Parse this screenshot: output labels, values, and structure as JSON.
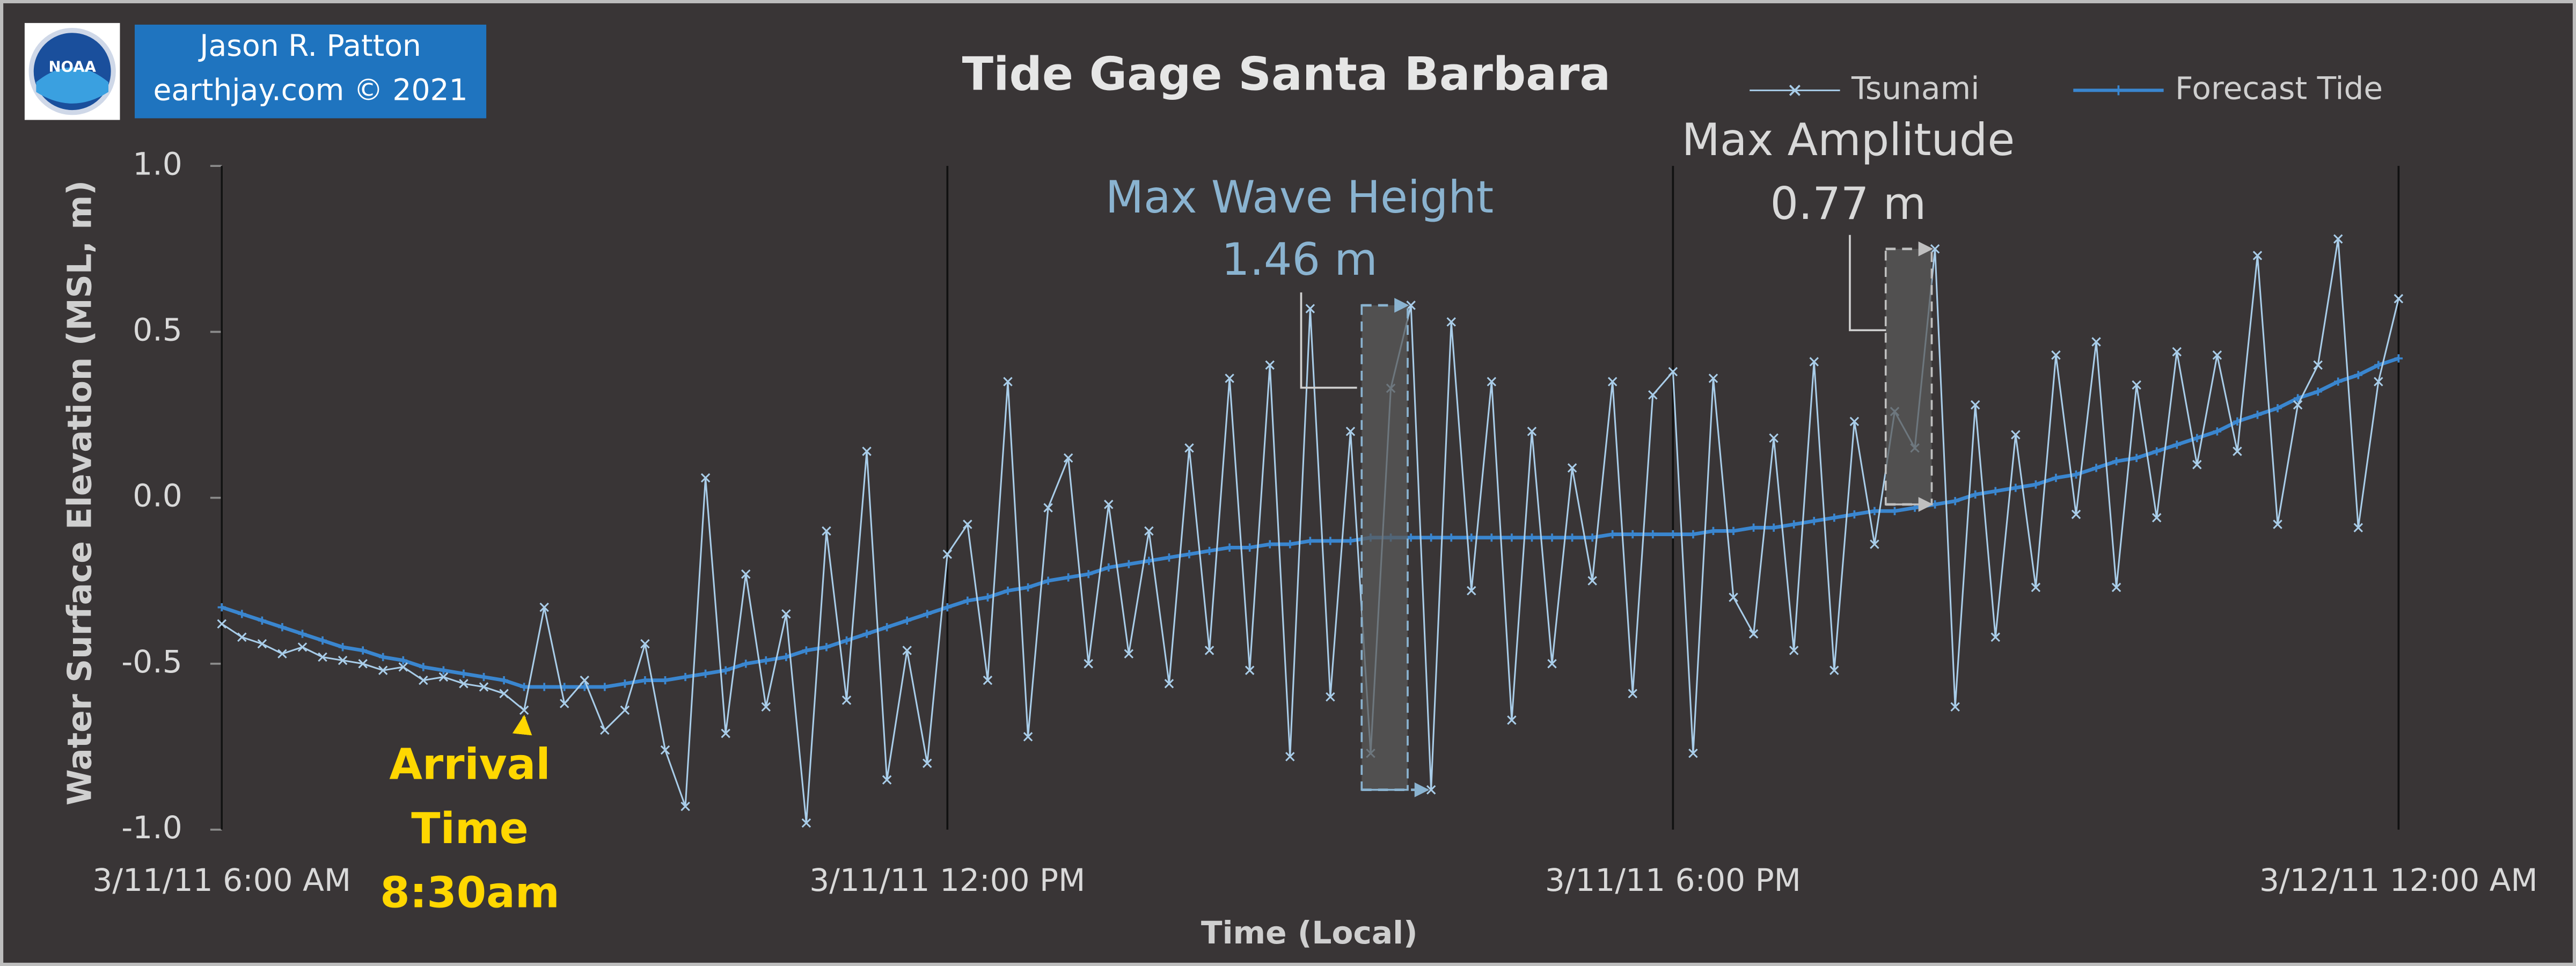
{
  "logo": "NOAA",
  "credit": [
    "Jason R. Patton",
    "earthjay.com © 2021"
  ],
  "chart_data": {
    "type": "line",
    "title": "Tide Gage Santa Barbara",
    "x_label": "Time (Local)",
    "y_label": "Water Surface Elevation (MSL, m)",
    "grid": "x",
    "x": [
      "3/11/11 6:00 AM",
      "3/11/11 6:10 AM",
      "3/11/11 6:20 AM",
      "3/11/11 6:30 AM",
      "3/11/11 6:40 AM",
      "3/11/11 6:50 AM",
      "3/11/11 7:00 AM",
      "3/11/11 7:10 AM",
      "3/11/11 7:20 AM",
      "3/11/11 7:30 AM",
      "3/11/11 7:40 AM",
      "3/11/11 7:50 AM",
      "3/11/11 8:00 AM",
      "3/11/11 8:10 AM",
      "3/11/11 8:20 AM",
      "3/11/11 8:30 AM",
      "3/11/11 8:40 AM",
      "3/11/11 8:50 AM",
      "3/11/11 9:00 AM",
      "3/11/11 9:10 AM",
      "3/11/11 9:20 AM",
      "3/11/11 9:30 AM",
      "3/11/11 9:40 AM",
      "3/11/11 9:50 AM",
      "3/11/11 10:00 AM",
      "3/11/11 10:10 AM",
      "3/11/11 10:20 AM",
      "3/11/11 10:30 AM",
      "3/11/11 10:40 AM",
      "3/11/11 10:50 AM",
      "3/11/11 11:00 AM",
      "3/11/11 11:10 AM",
      "3/11/11 11:20 AM",
      "3/11/11 11:30 AM",
      "3/11/11 11:40 AM",
      "3/11/11 11:50 AM",
      "3/11/11 12:00 PM",
      "3/11/11 12:10 PM",
      "3/11/11 12:20 PM",
      "3/11/11 12:30 PM",
      "3/11/11 12:40 PM",
      "3/11/11 12:50 PM",
      "3/11/11 1:00 PM",
      "3/11/11 1:10 PM",
      "3/11/11 1:20 PM",
      "3/11/11 1:30 PM",
      "3/11/11 1:40 PM",
      "3/11/11 1:50 PM",
      "3/11/11 2:00 PM",
      "3/11/11 2:10 PM",
      "3/11/11 2:20 PM",
      "3/11/11 2:30 PM",
      "3/11/11 2:40 PM",
      "3/11/11 2:50 PM",
      "3/11/11 3:00 PM",
      "3/11/11 3:10 PM",
      "3/11/11 3:20 PM",
      "3/11/11 3:30 PM",
      "3/11/11 3:40 PM",
      "3/11/11 3:50 PM",
      "3/11/11 4:00 PM",
      "3/11/11 4:10 PM",
      "3/11/11 4:20 PM",
      "3/11/11 4:30 PM",
      "3/11/11 4:40 PM",
      "3/11/11 4:50 PM",
      "3/11/11 5:00 PM",
      "3/11/11 5:10 PM",
      "3/11/11 5:20 PM",
      "3/11/11 5:30 PM",
      "3/11/11 5:40 PM",
      "3/11/11 5:50 PM",
      "3/11/11 6:00 PM",
      "3/11/11 6:10 PM",
      "3/11/11 6:20 PM",
      "3/11/11 6:30 PM",
      "3/11/11 6:40 PM",
      "3/11/11 6:50 PM",
      "3/11/11 7:00 PM",
      "3/11/11 7:10 PM",
      "3/11/11 7:20 PM",
      "3/11/11 7:30 PM",
      "3/11/11 7:40 PM",
      "3/11/11 7:50 PM",
      "3/11/11 8:00 PM",
      "3/11/11 8:10 PM",
      "3/11/11 8:20 PM",
      "3/11/11 8:30 PM",
      "3/11/11 8:40 PM",
      "3/11/11 8:50 PM",
      "3/11/11 9:00 PM",
      "3/11/11 9:10 PM",
      "3/11/11 9:20 PM",
      "3/11/11 9:30 PM",
      "3/11/11 9:40 PM",
      "3/11/11 9:50 PM",
      "3/11/11 10:00 PM",
      "3/11/11 10:10 PM",
      "3/11/11 10:20 PM",
      "3/11/11 10:30 PM",
      "3/11/11 10:40 PM",
      "3/11/11 10:50 PM",
      "3/11/11 11:00 PM",
      "3/11/11 11:10 PM",
      "3/11/11 11:20 PM",
      "3/11/11 11:30 PM",
      "3/11/11 11:40 PM",
      "3/11/11 11:50 PM",
      "3/12/11 12:00 AM"
    ],
    "series": [
      {
        "name": "Tsunami",
        "color": "#a9cde9",
        "marker": "x",
        "values": [
          -0.38,
          -0.42,
          -0.44,
          -0.47,
          -0.45,
          -0.48,
          -0.49,
          -0.5,
          -0.52,
          -0.51,
          -0.55,
          -0.54,
          -0.56,
          -0.57,
          -0.59,
          -0.64,
          -0.33,
          -0.62,
          -0.55,
          -0.7,
          -0.64,
          -0.44,
          -0.76,
          -0.93,
          0.06,
          -0.71,
          -0.23,
          -0.63,
          -0.35,
          -0.98,
          -0.1,
          -0.61,
          0.14,
          -0.85,
          -0.46,
          -0.8,
          -0.17,
          -0.08,
          -0.55,
          0.35,
          -0.72,
          -0.03,
          0.12,
          -0.5,
          -0.02,
          -0.47,
          -0.1,
          -0.56,
          0.15,
          -0.46,
          0.36,
          -0.52,
          0.4,
          -0.78,
          0.57,
          -0.6,
          0.2,
          -0.77,
          0.33,
          0.58,
          -0.88,
          0.53,
          -0.28,
          0.35,
          -0.67,
          0.2,
          -0.5,
          0.09,
          -0.25,
          0.35,
          -0.59,
          0.31,
          0.38,
          -0.77,
          0.36,
          -0.3,
          -0.41,
          0.18,
          -0.46,
          0.41,
          -0.52,
          0.23,
          -0.14,
          0.26,
          0.15,
          0.75,
          -0.63,
          0.28,
          -0.42,
          0.19,
          -0.27,
          0.43,
          -0.05,
          0.47,
          -0.27,
          0.34,
          -0.06,
          0.44,
          0.1,
          0.43,
          0.14,
          0.73,
          -0.08,
          0.28,
          0.4,
          0.78,
          -0.09,
          0.35,
          0.6
        ]
      },
      {
        "name": "Forecast Tide",
        "color": "#3a86cf",
        "marker": "+",
        "values": [
          -0.33,
          -0.35,
          -0.37,
          -0.39,
          -0.41,
          -0.43,
          -0.45,
          -0.46,
          -0.48,
          -0.49,
          -0.51,
          -0.52,
          -0.53,
          -0.54,
          -0.55,
          -0.57,
          -0.57,
          -0.57,
          -0.57,
          -0.57,
          -0.56,
          -0.55,
          -0.55,
          -0.54,
          -0.53,
          -0.52,
          -0.5,
          -0.49,
          -0.48,
          -0.46,
          -0.45,
          -0.43,
          -0.41,
          -0.39,
          -0.37,
          -0.35,
          -0.33,
          -0.31,
          -0.3,
          -0.28,
          -0.27,
          -0.25,
          -0.24,
          -0.23,
          -0.21,
          -0.2,
          -0.19,
          -0.18,
          -0.17,
          -0.16,
          -0.15,
          -0.15,
          -0.14,
          -0.14,
          -0.13,
          -0.13,
          -0.13,
          -0.12,
          -0.12,
          -0.12,
          -0.12,
          -0.12,
          -0.12,
          -0.12,
          -0.12,
          -0.12,
          -0.12,
          -0.12,
          -0.12,
          -0.11,
          -0.11,
          -0.11,
          -0.11,
          -0.11,
          -0.1,
          -0.1,
          -0.09,
          -0.09,
          -0.08,
          -0.07,
          -0.06,
          -0.05,
          -0.04,
          -0.04,
          -0.03,
          -0.02,
          -0.01,
          0.01,
          0.02,
          0.03,
          0.04,
          0.06,
          0.07,
          0.09,
          0.11,
          0.12,
          0.14,
          0.16,
          0.18,
          0.2,
          0.23,
          0.25,
          0.27,
          0.3,
          0.32,
          0.35,
          0.37,
          0.4,
          0.42
        ]
      }
    ],
    "xlim": [
      "3/11/11 6:00 AM",
      "3/12/11 12:00 AM"
    ],
    "xticks": [
      "3/11/11 6:00 AM",
      "3/11/11 12:00 PM",
      "3/11/11 6:00 PM",
      "3/12/11 12:00 AM"
    ],
    "ylim": [
      -1.0,
      1.0
    ],
    "yticks": [
      {
        "value": -1.0,
        "label": "-1.0"
      },
      -0.5,
      {
        "value": 0.0,
        "label": "0.0"
      },
      0.5,
      {
        "value": 1.0,
        "label": "1.0"
      }
    ],
    "annotations": [
      "Max Wave Height",
      "1.46 m",
      "Max Amplitude",
      "0.77 m",
      "Arrival",
      "Time",
      "8:30am"
    ]
  }
}
